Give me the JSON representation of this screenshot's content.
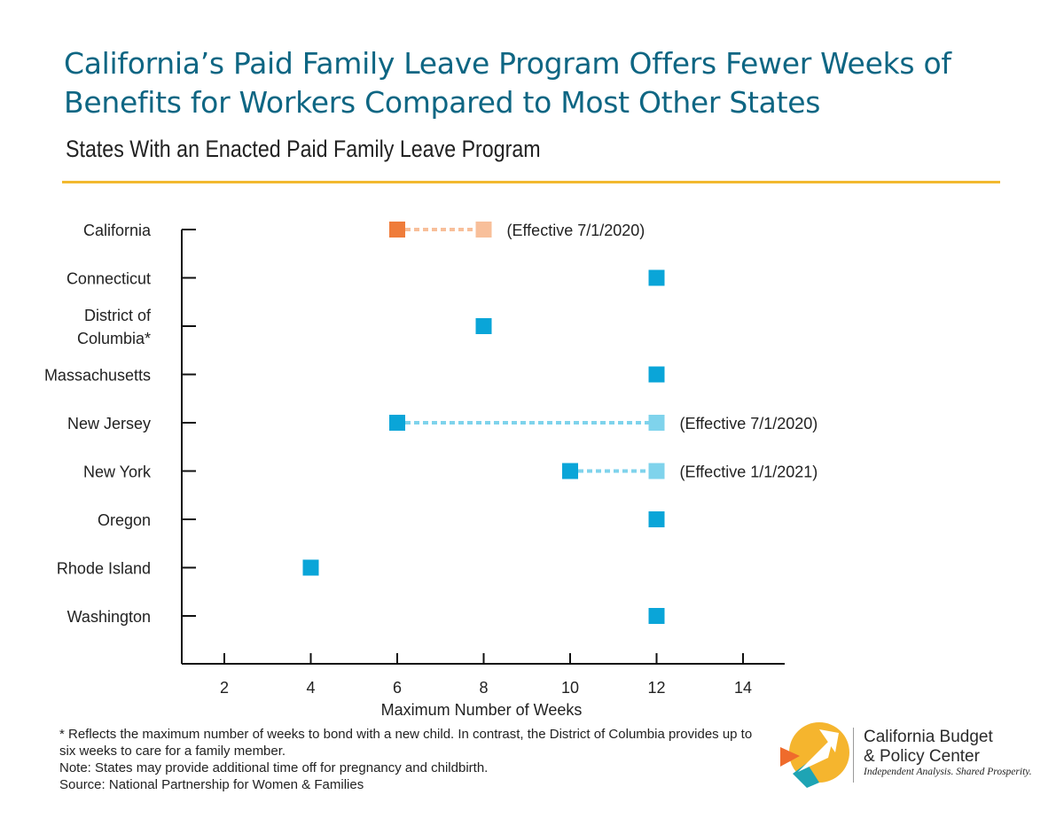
{
  "title": "California’s Paid Family Leave Program Offers Fewer Weeks of Benefits for Workers Compared to Most Other States",
  "subtitle": "States With an Enacted Paid Family Leave Program",
  "colors": {
    "title": "#0e6683",
    "accent_rule": "#f2b92f",
    "current_blue": "#0aa5d8",
    "future_blue": "#7fd3ec",
    "california_current": "#ef7c3a",
    "california_future": "#f8bf9a"
  },
  "chart_data": {
    "type": "scatter",
    "xlabel": "Maximum Number of Weeks",
    "xlim": [
      1,
      15
    ],
    "xticks": [
      2,
      4,
      6,
      8,
      10,
      12,
      14
    ],
    "categories": [
      {
        "label": "California",
        "current": 6,
        "future": 8,
        "note": "(Effective 7/1/2020)",
        "highlight": true
      },
      {
        "label": "Connecticut",
        "current": 12
      },
      {
        "label": "District of\nColumbia*",
        "current": 8
      },
      {
        "label": "Massachusetts",
        "current": 12
      },
      {
        "label": "New Jersey",
        "current": 6,
        "future": 12,
        "note": "(Effective 7/1/2020)"
      },
      {
        "label": "New York",
        "current": 10,
        "future": 12,
        "note": "(Effective 1/1/2021)"
      },
      {
        "label": "Oregon",
        "current": 12
      },
      {
        "label": "Rhode Island",
        "current": 4
      },
      {
        "label": "Washington",
        "current": 12
      }
    ]
  },
  "footnotes": [
    "* Reflects the maximum number of weeks to bond with a new child. In contrast, the District of Columbia provides up to six weeks to care for a family member.",
    "Note: States may provide additional time off for pregnancy and childbirth.",
    "Source: National Partnership for Women & Families"
  ],
  "logo": {
    "name_line1": "California Budget",
    "name_line2": "& Policy Center",
    "tagline": "Independent Analysis. Shared Prosperity."
  }
}
